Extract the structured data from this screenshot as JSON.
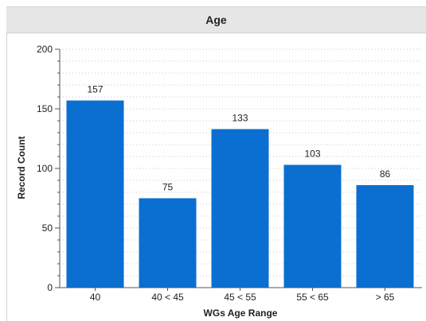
{
  "panel": {
    "title": "Age"
  },
  "chart_data": {
    "type": "bar",
    "title": "Age",
    "xlabel": "WGs Age Range",
    "ylabel": "Record Count",
    "categories": [
      "40",
      "40 < 45",
      "45 < 55",
      "55 < 65",
      "> 65"
    ],
    "values": [
      157,
      75,
      133,
      103,
      86
    ],
    "data_labels": [
      "157",
      "75",
      "133",
      "103",
      "86"
    ],
    "ylim": [
      0,
      200
    ],
    "yticks": [
      0,
      50,
      100,
      150,
      200
    ],
    "grid": true,
    "legend": "none",
    "colors": {
      "bar": "#0a6fd0",
      "grid": "#c8c8c8",
      "axis": "#555555"
    }
  }
}
